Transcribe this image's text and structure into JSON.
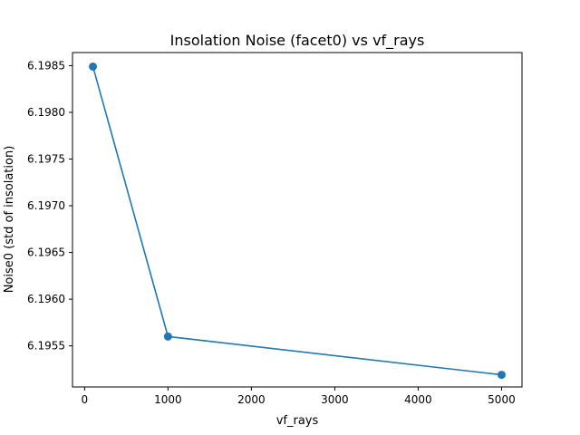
{
  "chart_data": {
    "type": "line",
    "title": "Insolation Noise (facet0) vs vf_rays",
    "xlabel": "vf_rays",
    "ylabel": "Noise0 (std of insolation)",
    "x": [
      100,
      1000,
      5000
    ],
    "series": [
      {
        "values": [
          6.19849,
          6.1956,
          6.19519
        ]
      }
    ],
    "xlim": [
      -145,
      5245
    ],
    "ylim": [
      6.19506,
      6.19864
    ],
    "xticks": [
      0,
      1000,
      2000,
      3000,
      4000,
      5000
    ],
    "xtick_labels": [
      "0",
      "1000",
      "2000",
      "3000",
      "4000",
      "5000"
    ],
    "yticks": [
      6.1955,
      6.196,
      6.1965,
      6.197,
      6.1975,
      6.198,
      6.1985
    ],
    "ytick_labels": [
      "6.1955",
      "6.1960",
      "6.1965",
      "6.1970",
      "6.1975",
      "6.1980",
      "6.1985"
    ],
    "grid": false,
    "legend": "none",
    "line_color": "#1f77b4",
    "marker": "circle"
  }
}
